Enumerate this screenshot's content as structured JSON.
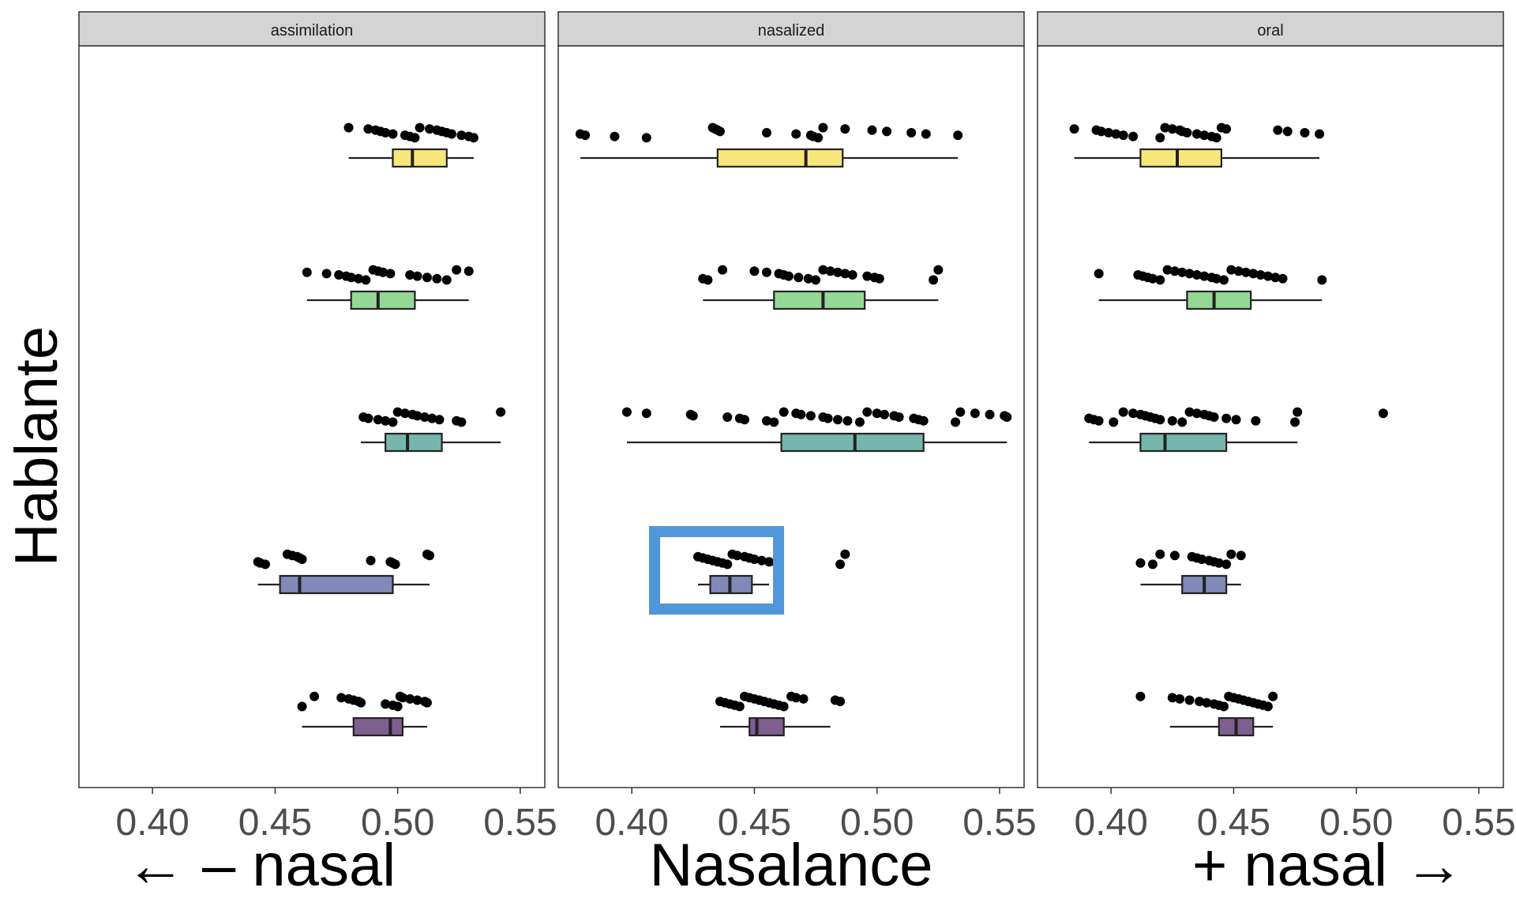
{
  "chart_data": {
    "type": "boxplot",
    "facet_variable": "condition",
    "facets": [
      "assimilation",
      "nasalized",
      "oral"
    ],
    "xlabel": "Nasalance",
    "xlabel_left": "← – nasal",
    "xlabel_right": "+ nasal →",
    "ylabel": "Hablante",
    "xlim": [
      0.37,
      0.56
    ],
    "x_ticks": [
      0.4,
      0.45,
      0.5,
      0.55
    ],
    "x_tick_labels": [
      "0.40",
      "0.45",
      "0.50",
      "0.55"
    ],
    "grid": false,
    "speaker_colors": [
      "#f7e77a",
      "#95d896",
      "#75b7ad",
      "#8089b8",
      "#7e5f8e"
    ],
    "highlight": {
      "facet": "nasalized",
      "speaker": 4,
      "color": "#4f97d8"
    },
    "panels": [
      {
        "facet": "assimilation",
        "speakers": [
          {
            "speaker": 1,
            "whisker_low": 0.48,
            "q1": 0.498,
            "median": 0.506,
            "q3": 0.52,
            "whisker_high": 0.531,
            "points": [
              0.48,
              0.488,
              0.491,
              0.493,
              0.495,
              0.498,
              0.503,
              0.505,
              0.507,
              0.509,
              0.513,
              0.516,
              0.518,
              0.52,
              0.522,
              0.526,
              0.529,
              0.531
            ]
          },
          {
            "speaker": 2,
            "whisker_low": 0.463,
            "q1": 0.481,
            "median": 0.492,
            "q3": 0.507,
            "whisker_high": 0.529,
            "points": [
              0.463,
              0.471,
              0.476,
              0.479,
              0.481,
              0.484,
              0.487,
              0.49,
              0.492,
              0.494,
              0.497,
              0.505,
              0.508,
              0.512,
              0.516,
              0.52,
              0.524,
              0.529
            ]
          },
          {
            "speaker": 3,
            "whisker_low": 0.485,
            "q1": 0.495,
            "median": 0.504,
            "q3": 0.518,
            "whisker_high": 0.542,
            "points": [
              0.486,
              0.488,
              0.492,
              0.495,
              0.498,
              0.5,
              0.503,
              0.506,
              0.508,
              0.511,
              0.514,
              0.517,
              0.524,
              0.526,
              0.542
            ]
          },
          {
            "speaker": 4,
            "whisker_low": 0.443,
            "q1": 0.452,
            "median": 0.46,
            "q3": 0.498,
            "whisker_high": 0.513,
            "points": [
              0.443,
              0.444,
              0.446,
              0.455,
              0.457,
              0.459,
              0.46,
              0.461,
              0.489,
              0.497,
              0.498,
              0.499,
              0.512,
              0.513
            ]
          },
          {
            "speaker": 5,
            "whisker_low": 0.461,
            "q1": 0.482,
            "median": 0.497,
            "q3": 0.502,
            "whisker_high": 0.512,
            "points": [
              0.461,
              0.466,
              0.477,
              0.48,
              0.482,
              0.484,
              0.485,
              0.495,
              0.498,
              0.5,
              0.501,
              0.502,
              0.505,
              0.508,
              0.511,
              0.512
            ]
          }
        ]
      },
      {
        "facet": "nasalized",
        "speakers": [
          {
            "speaker": 1,
            "whisker_low": 0.379,
            "q1": 0.435,
            "median": 0.471,
            "q3": 0.486,
            "whisker_high": 0.533,
            "points": [
              0.379,
              0.381,
              0.393,
              0.406,
              0.433,
              0.434,
              0.435,
              0.436,
              0.455,
              0.467,
              0.473,
              0.474,
              0.476,
              0.478,
              0.487,
              0.498,
              0.504,
              0.514,
              0.52,
              0.533
            ]
          },
          {
            "speaker": 2,
            "whisker_low": 0.429,
            "q1": 0.458,
            "median": 0.478,
            "q3": 0.495,
            "whisker_high": 0.525,
            "points": [
              0.429,
              0.431,
              0.437,
              0.45,
              0.455,
              0.46,
              0.462,
              0.464,
              0.468,
              0.472,
              0.475,
              0.478,
              0.481,
              0.484,
              0.487,
              0.49,
              0.496,
              0.499,
              0.501,
              0.523,
              0.525
            ]
          },
          {
            "speaker": 3,
            "whisker_low": 0.398,
            "q1": 0.461,
            "median": 0.491,
            "q3": 0.519,
            "whisker_high": 0.553,
            "points": [
              0.398,
              0.406,
              0.424,
              0.425,
              0.439,
              0.444,
              0.446,
              0.455,
              0.458,
              0.462,
              0.467,
              0.469,
              0.473,
              0.478,
              0.48,
              0.484,
              0.488,
              0.493,
              0.496,
              0.5,
              0.503,
              0.507,
              0.509,
              0.515,
              0.517,
              0.519,
              0.532,
              0.534,
              0.54,
              0.546,
              0.552,
              0.553
            ]
          },
          {
            "speaker": 4,
            "whisker_low": 0.427,
            "q1": 0.432,
            "median": 0.44,
            "q3": 0.449,
            "whisker_high": 0.456,
            "points": [
              0.427,
              0.429,
              0.431,
              0.433,
              0.435,
              0.437,
              0.439,
              0.441,
              0.443,
              0.446,
              0.448,
              0.45,
              0.453,
              0.456,
              0.459,
              0.485,
              0.487
            ]
          },
          {
            "speaker": 5,
            "whisker_low": 0.436,
            "q1": 0.448,
            "median": 0.451,
            "q3": 0.462,
            "whisker_high": 0.481,
            "points": [
              0.436,
              0.438,
              0.44,
              0.442,
              0.444,
              0.446,
              0.448,
              0.45,
              0.452,
              0.454,
              0.456,
              0.458,
              0.46,
              0.462,
              0.465,
              0.467,
              0.47,
              0.483,
              0.485
            ]
          }
        ]
      },
      {
        "facet": "oral",
        "speakers": [
          {
            "speaker": 1,
            "whisker_low": 0.385,
            "q1": 0.412,
            "median": 0.427,
            "q3": 0.445,
            "whisker_high": 0.485,
            "points": [
              0.385,
              0.394,
              0.396,
              0.399,
              0.402,
              0.405,
              0.409,
              0.42,
              0.422,
              0.425,
              0.428,
              0.429,
              0.431,
              0.435,
              0.438,
              0.441,
              0.443,
              0.445,
              0.447,
              0.468,
              0.472,
              0.479,
              0.485
            ]
          },
          {
            "speaker": 2,
            "whisker_low": 0.395,
            "q1": 0.431,
            "median": 0.442,
            "q3": 0.457,
            "whisker_high": 0.486,
            "points": [
              0.395,
              0.411,
              0.413,
              0.415,
              0.417,
              0.42,
              0.423,
              0.426,
              0.429,
              0.432,
              0.435,
              0.438,
              0.441,
              0.443,
              0.446,
              0.449,
              0.452,
              0.455,
              0.458,
              0.461,
              0.464,
              0.467,
              0.47,
              0.486
            ]
          },
          {
            "speaker": 3,
            "whisker_low": 0.391,
            "q1": 0.412,
            "median": 0.422,
            "q3": 0.447,
            "whisker_high": 0.476,
            "points": [
              0.391,
              0.393,
              0.395,
              0.401,
              0.405,
              0.409,
              0.412,
              0.414,
              0.416,
              0.418,
              0.42,
              0.425,
              0.429,
              0.432,
              0.435,
              0.438,
              0.44,
              0.442,
              0.447,
              0.451,
              0.459,
              0.475,
              0.476,
              0.511
            ]
          },
          {
            "speaker": 4,
            "whisker_low": 0.412,
            "q1": 0.429,
            "median": 0.438,
            "q3": 0.447,
            "whisker_high": 0.453,
            "points": [
              0.412,
              0.417,
              0.42,
              0.426,
              0.433,
              0.435,
              0.437,
              0.44,
              0.442,
              0.444,
              0.447,
              0.449,
              0.453
            ]
          },
          {
            "speaker": 5,
            "whisker_low": 0.424,
            "q1": 0.444,
            "median": 0.451,
            "q3": 0.458,
            "whisker_high": 0.466,
            "points": [
              0.412,
              0.425,
              0.428,
              0.432,
              0.436,
              0.439,
              0.442,
              0.444,
              0.446,
              0.448,
              0.45,
              0.452,
              0.454,
              0.456,
              0.458,
              0.46,
              0.462,
              0.464,
              0.466
            ]
          }
        ]
      }
    ]
  }
}
